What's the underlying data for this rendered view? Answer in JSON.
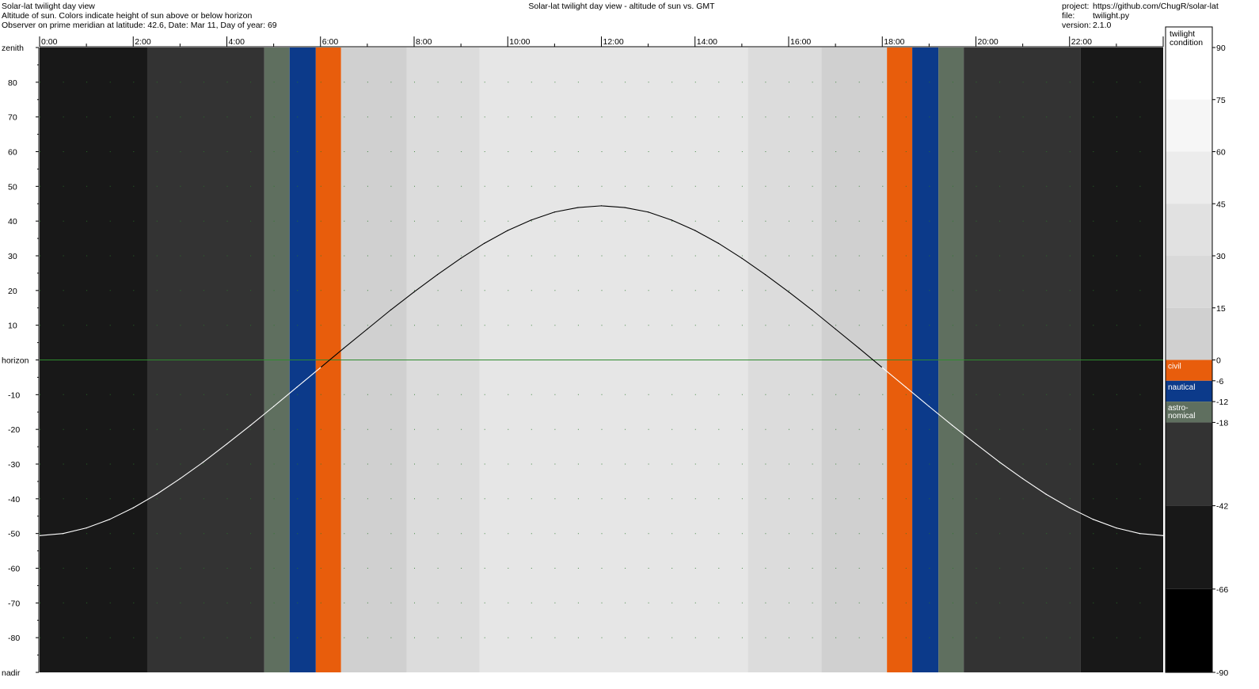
{
  "header": {
    "line1": "Solar-lat twilight day view",
    "line2": "Altitude of sun. Colors indicate height of sun above or below horizon",
    "line3": "Observer on prime meridian at latitude: 42.6, Date: Mar 11, Day of year: 69",
    "center_title": "Solar-lat twilight day view - altitude of sun vs. GMT",
    "project_label": "project:",
    "project_value": "https://github.com/ChugR/solar-lat",
    "file_label": "file:",
    "file_value": "twilight.py",
    "version_label": "version:",
    "version_value": "2.1.0"
  },
  "chart_data": {
    "type": "line",
    "title": "Solar-lat twilight day view - altitude of sun vs. GMT",
    "xlabel": "",
    "ylabel": "",
    "xlim": [
      0,
      24
    ],
    "ylim": [
      -90,
      90
    ],
    "x_tick_labels": [
      "0:00",
      "2:00",
      "4:00",
      "6:00",
      "8:00",
      "10:00",
      "12:00",
      "14:00",
      "16:00",
      "18:00",
      "20:00",
      "22:00"
    ],
    "y_tick_labels": [
      {
        "value": 90,
        "label": "zenith"
      },
      {
        "value": 80,
        "label": "80"
      },
      {
        "value": 70,
        "label": "70"
      },
      {
        "value": 60,
        "label": "60"
      },
      {
        "value": 50,
        "label": "50"
      },
      {
        "value": 40,
        "label": "40"
      },
      {
        "value": 30,
        "label": "30"
      },
      {
        "value": 20,
        "label": "20"
      },
      {
        "value": 10,
        "label": "10"
      },
      {
        "value": 0,
        "label": "horizon"
      },
      {
        "value": -10,
        "label": "-10"
      },
      {
        "value": -20,
        "label": "-20"
      },
      {
        "value": -30,
        "label": "-30"
      },
      {
        "value": -40,
        "label": "-40"
      },
      {
        "value": -50,
        "label": "-50"
      },
      {
        "value": -60,
        "label": "-60"
      },
      {
        "value": -70,
        "label": "-70"
      },
      {
        "value": -80,
        "label": "-80"
      },
      {
        "value": -90,
        "label": "nadir"
      }
    ],
    "grid": "dotted",
    "series": [
      {
        "color": "#000000",
        "color_below_horizon": "#ffffff",
        "x": [
          0,
          0.5,
          1,
          1.5,
          2,
          2.5,
          3,
          3.5,
          4,
          4.5,
          5,
          5.5,
          6,
          6.5,
          7,
          7.5,
          8,
          8.5,
          9,
          9.5,
          10,
          10.5,
          11,
          11.5,
          12,
          12.5,
          13,
          13.5,
          14,
          14.5,
          15,
          15.5,
          16,
          16.5,
          17,
          17.5,
          18,
          18.5,
          19,
          19.5,
          20,
          20.5,
          21,
          21.5,
          22,
          22.5,
          23,
          23.5,
          24
        ],
        "y": [
          -50.6,
          -50.0,
          -48.4,
          -45.9,
          -42.6,
          -38.7,
          -34.2,
          -29.4,
          -24.2,
          -18.9,
          -13.4,
          -7.8,
          -2.2,
          3.4,
          8.9,
          14.4,
          19.6,
          24.6,
          29.3,
          33.6,
          37.3,
          40.3,
          42.6,
          43.9,
          44.4,
          43.9,
          42.6,
          40.3,
          37.3,
          33.6,
          29.3,
          24.6,
          19.6,
          14.4,
          8.9,
          3.4,
          -2.2,
          -7.8,
          -13.4,
          -18.9,
          -24.2,
          -29.4,
          -34.2,
          -38.7,
          -42.6,
          -45.9,
          -48.4,
          -50.0,
          -50.6
        ]
      }
    ],
    "background_bands": [
      {
        "x0": 0.0,
        "x1": 2.3,
        "color": "#181818"
      },
      {
        "x0": 2.3,
        "x1": 4.8,
        "color": "#333333"
      },
      {
        "x0": 4.8,
        "x1": 5.34,
        "color": "#5f6f5f"
      },
      {
        "x0": 5.34,
        "x1": 5.9,
        "color": "#0c3a8a"
      },
      {
        "x0": 5.9,
        "x1": 6.44,
        "color": "#e85d0c"
      },
      {
        "x0": 6.44,
        "x1": 7.84,
        "color": "#d0d0d0"
      },
      {
        "x0": 7.84,
        "x1": 9.4,
        "color": "#dcdcdc"
      },
      {
        "x0": 9.4,
        "x1": 15.13,
        "color": "#e6e6e6"
      },
      {
        "x0": 15.13,
        "x1": 16.7,
        "color": "#dcdcdc"
      },
      {
        "x0": 16.7,
        "x1": 18.1,
        "color": "#d0d0d0"
      },
      {
        "x0": 18.1,
        "x1": 18.64,
        "color": "#e85d0c"
      },
      {
        "x0": 18.64,
        "x1": 19.2,
        "color": "#0c3a8a"
      },
      {
        "x0": 19.2,
        "x1": 19.74,
        "color": "#5f6f5f"
      },
      {
        "x0": 19.74,
        "x1": 22.24,
        "color": "#333333"
      },
      {
        "x0": 22.24,
        "x1": 24.0,
        "color": "#181818"
      }
    ],
    "horizon_line_color": "#2e8b2e",
    "legend": {
      "placement": "right",
      "title_lines": [
        "twilight",
        "condition"
      ],
      "ylim": [
        -90,
        90
      ],
      "tick_labels": [
        "90",
        "75",
        "60",
        "45",
        "30",
        "15",
        "0",
        "-6",
        "-12",
        "-18",
        "-42",
        "-66",
        "-90"
      ],
      "bands": [
        {
          "y0": 75,
          "y1": 90,
          "color": "#ffffff"
        },
        {
          "y0": 60,
          "y1": 75,
          "color": "#f6f6f6"
        },
        {
          "y0": 45,
          "y1": 60,
          "color": "#ececec"
        },
        {
          "y0": 30,
          "y1": 45,
          "color": "#e1e1e1"
        },
        {
          "y0": 15,
          "y1": 30,
          "color": "#d9d9d9"
        },
        {
          "y0": 0,
          "y1": 15,
          "color": "#d0d0d0"
        },
        {
          "y0": -6,
          "y1": 0,
          "color": "#e85d0c",
          "label": "civil"
        },
        {
          "y0": -12,
          "y1": -6,
          "color": "#0c3a8a",
          "label": "nautical"
        },
        {
          "y0": -18,
          "y1": -12,
          "color": "#5f6f5f",
          "label": "astro-nomical",
          "label_lines": [
            "astro-",
            "nomical"
          ]
        },
        {
          "y0": -42,
          "y1": -18,
          "color": "#333333"
        },
        {
          "y0": -66,
          "y1": -42,
          "color": "#181818"
        },
        {
          "y0": -90,
          "y1": -66,
          "color": "#000000"
        }
      ]
    }
  }
}
